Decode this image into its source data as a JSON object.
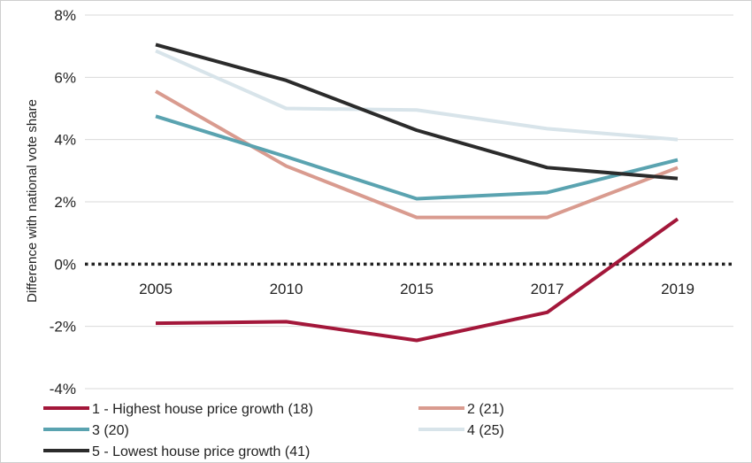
{
  "chart_data": {
    "type": "line",
    "title": "",
    "xlabel": "",
    "ylabel": "Difference with national vote share",
    "categories": [
      "2005",
      "2010",
      "2015",
      "2017",
      "2019"
    ],
    "ylim": [
      -4,
      8
    ],
    "yticks": [
      -4,
      -2,
      0,
      2,
      4,
      6,
      8
    ],
    "ytick_labels": [
      "-4%",
      "-2%",
      "0%",
      "2%",
      "4%",
      "6%",
      "8%"
    ],
    "grid": true,
    "zero_line": "dotted",
    "legend_position": "bottom",
    "series": [
      {
        "name": "1 - Highest house price growth (18)",
        "color": "#a3173a",
        "values": [
          -1.9,
          -1.85,
          -2.45,
          -1.55,
          1.45
        ]
      },
      {
        "name": "2 (21)",
        "color": "#d99b8f",
        "values": [
          5.55,
          3.15,
          1.5,
          1.5,
          3.1
        ]
      },
      {
        "name": "3 (20)",
        "color": "#5aa3b0",
        "values": [
          4.75,
          3.45,
          2.1,
          2.3,
          3.35
        ]
      },
      {
        "name": "4 (25)",
        "color": "#d8e4ea",
        "values": [
          6.85,
          5.0,
          4.95,
          4.35,
          4.0
        ]
      },
      {
        "name": "5 - Lowest house price growth (41)",
        "color": "#2b2b2b",
        "values": [
          7.05,
          5.9,
          4.3,
          3.1,
          2.75
        ]
      }
    ]
  }
}
